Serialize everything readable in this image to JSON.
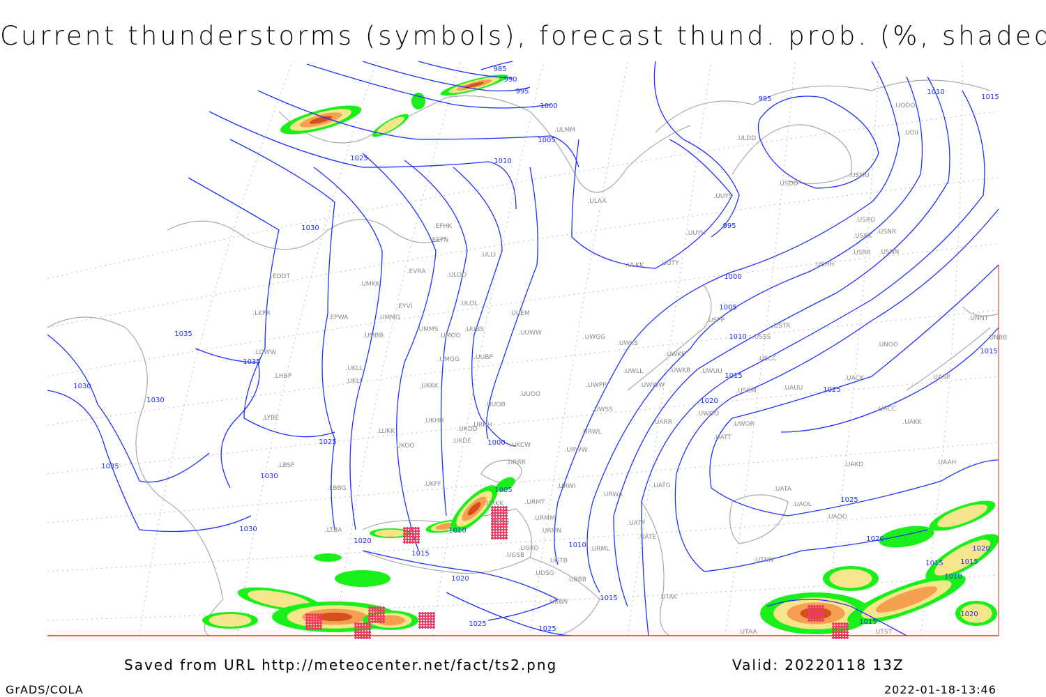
{
  "title": "Current thunderstorms (symbols), forecast thund. prob. (%, shaded)",
  "footer": {
    "source": "Saved from URL http://meteocenter.net/fact/ts2.png",
    "valid": "Valid: 20220118 13Z",
    "software": "GrADS/COLA",
    "timestamp": "2022-01-18-13:46"
  },
  "colors": {
    "isobars": "#1f2fff",
    "coastlines": "#a8a8a8",
    "prob_low": "#19f019",
    "prob_mid": "#f5e68c",
    "prob_high": "#f5a050",
    "prob_max": "#d2501e",
    "thunderstorm_symbol": "#f03c64",
    "border": "#e03010"
  },
  "isobar_labels": [
    "985",
    "990",
    "995",
    "1000",
    "1005",
    "1010",
    "1025",
    "1030",
    "1035",
    "1035",
    "1030",
    "1030",
    "1035",
    "1030",
    "1030",
    "1025",
    "1025",
    "1020",
    "1015",
    "1010",
    "1005",
    "1000",
    "1020",
    "1025",
    "1015",
    "1010",
    "995",
    "995",
    "1010",
    "1015",
    "1000",
    "1005",
    "1010",
    "1015",
    "1020",
    "1025",
    "1025",
    "1020",
    "1015",
    "1020",
    "1015",
    "1020",
    "1015",
    "1010",
    "1015"
  ],
  "stations": [
    "EFHK",
    "EETN",
    "EVRA",
    "ULOD",
    "ULLI",
    "UMKK",
    "EYVI",
    "ULOL",
    "UMMG",
    "EPWA",
    "UMMS",
    "UMOO",
    "UUBS",
    "UUEM",
    "UUWW",
    "UMBB",
    "LKPR",
    "EDDT",
    "LOWW",
    "LHBP",
    "UKLL",
    "UKLI",
    "UMGG",
    "UUBP",
    "UKKK",
    "UUOO",
    "UUOB",
    "LYBE",
    "UKHH",
    "UKDD",
    "URHH",
    "UKDE",
    "LUKK",
    "UKOO",
    "UKCW",
    "URRR",
    "LBSF",
    "LBBG",
    "UKFF",
    "URKK",
    "URSS",
    "URMT",
    "URMM",
    "URMN",
    "UGKO",
    "UGTB",
    "UGSB",
    "UDSG",
    "UBBB",
    "UBBN",
    "UTAK",
    "URWA",
    "URWI",
    "URWW",
    "URWL",
    "UWSS",
    "UWPP",
    "UWWW",
    "UWLL",
    "UWKS",
    "UWGG",
    "UWKE",
    "UWKB",
    "UWUU",
    "UARR",
    "UATG",
    "UATP",
    "UATE",
    "URML",
    "UUYS",
    "UUYH",
    "ULKK",
    "UUTY",
    "ULAA",
    "ULMM",
    "ULDD",
    "USDD",
    "USMU",
    "UOOO",
    "UOII",
    "USRO",
    "USRK",
    "USNR",
    "USRR",
    "USNN",
    "USHH",
    "USPP",
    "USTR",
    "USSS",
    "USCC",
    "USCM",
    "UAUU",
    "UACK",
    "UNOO",
    "UASP",
    "UNNT",
    "UNBB",
    "UACC",
    "UAKK",
    "UWOO",
    "UWOR",
    "UATT",
    "UAKD",
    "UAAH",
    "UATA",
    "UAOL",
    "UAOO",
    "UTNN",
    "UTAA",
    "UTST",
    "LTBA"
  ]
}
